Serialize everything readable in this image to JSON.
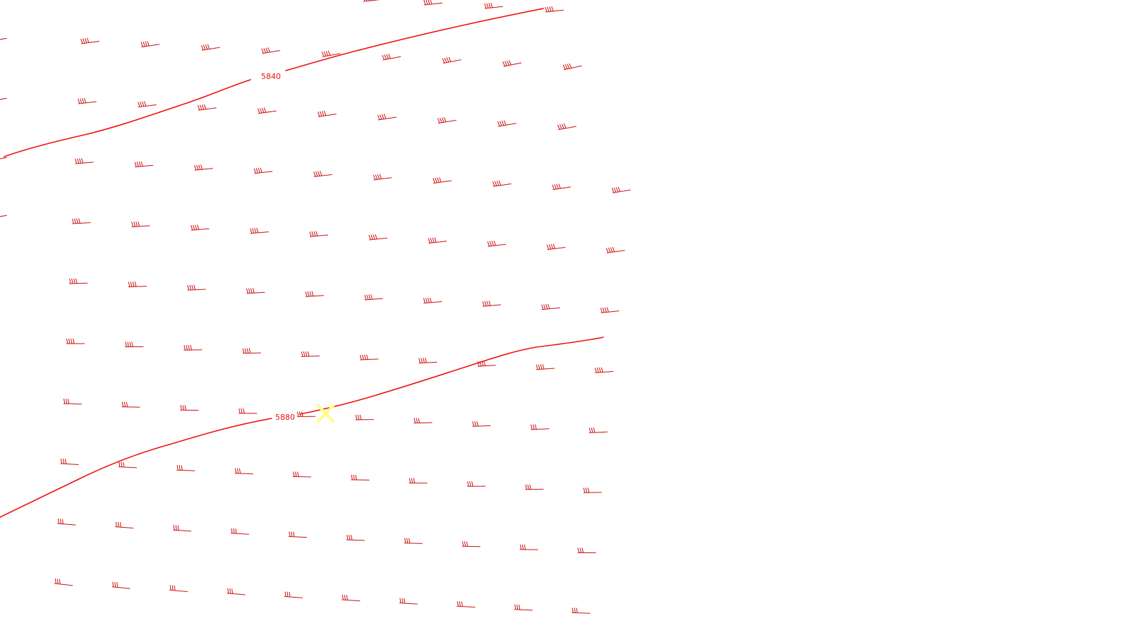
{
  "colors": {
    "background": "#ffffff",
    "contour": "#ee1111",
    "barb": "#cc1111",
    "marker": "#ffff88"
  },
  "contours": [
    {
      "value": 5840,
      "label": "5840"
    },
    {
      "value": 5880,
      "label": "5880"
    }
  ],
  "wind_barbs": {
    "description_icon": "wind-barb-icon",
    "staff_direction_deg": 282,
    "flag_count_typical": 4
  },
  "marker": {
    "icon": "x-marker-icon"
  }
}
